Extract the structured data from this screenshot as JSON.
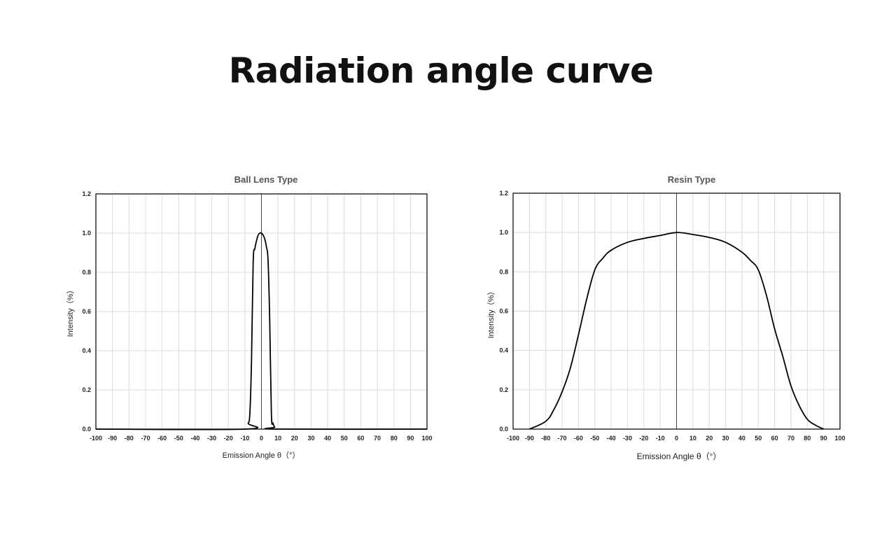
{
  "title": "Radiation angle curve",
  "chart_data": [
    {
      "type": "line",
      "title": "Ball Lens Type",
      "xlabel": "Emission Angle θ（°）",
      "ylabel": "Intensity（%）",
      "xlim": [
        -100,
        100
      ],
      "ylim": [
        0,
        1.2
      ],
      "x_ticks": [
        "-100",
        "-90",
        "-80",
        "-70",
        "-60",
        "-50",
        "-40",
        "-30",
        "-20",
        "-10",
        "0",
        "10",
        "20",
        "30",
        "40",
        "50",
        "60",
        "70",
        "80",
        "90",
        "100"
      ],
      "y_ticks": [
        "0.0",
        "0.2",
        "0.4",
        "0.6",
        "0.8",
        "1.0",
        "1.2"
      ],
      "grid": true,
      "series": [
        {
          "x": [
            -100,
            -10,
            -8,
            -7,
            -6,
            -5,
            -4,
            -3,
            -2,
            -1,
            0,
            1,
            2,
            3,
            4,
            5,
            6,
            7,
            8,
            10,
            100
          ],
          "y": [
            0,
            0,
            0.03,
            0.08,
            0.35,
            0.85,
            0.92,
            0.96,
            0.99,
            1.0,
            1.0,
            0.99,
            0.97,
            0.93,
            0.86,
            0.55,
            0.08,
            0.03,
            0.01,
            0,
            0
          ]
        }
      ]
    },
    {
      "type": "line",
      "title": "Resin Type",
      "xlabel": "Emission Angle θ（°）",
      "ylabel": "Intensity（%）",
      "xlim": [
        -100,
        100
      ],
      "ylim": [
        0,
        1.2
      ],
      "x_ticks": [
        "-100",
        "-90",
        "-80",
        "-70",
        "-60",
        "-50",
        "-40",
        "-30",
        "-20",
        "-10",
        "0",
        "10",
        "20",
        "30",
        "40",
        "50",
        "60",
        "70",
        "80",
        "90",
        "100"
      ],
      "y_ticks": [
        "0.0",
        "0.2",
        "0.4",
        "0.6",
        "0.8",
        "1.0",
        "1.2"
      ],
      "grid": true,
      "series": [
        {
          "x": [
            -90,
            -80,
            -75,
            -70,
            -65,
            -60,
            -55,
            -50,
            -45,
            -40,
            -30,
            -20,
            -10,
            0,
            10,
            20,
            30,
            40,
            45,
            50,
            55,
            60,
            65,
            70,
            75,
            80,
            85,
            90
          ],
          "y": [
            0,
            0.04,
            0.1,
            0.19,
            0.31,
            0.48,
            0.66,
            0.81,
            0.87,
            0.91,
            0.95,
            0.97,
            0.985,
            1.0,
            0.99,
            0.975,
            0.95,
            0.9,
            0.86,
            0.81,
            0.68,
            0.51,
            0.37,
            0.22,
            0.12,
            0.05,
            0.02,
            0
          ]
        }
      ]
    }
  ]
}
